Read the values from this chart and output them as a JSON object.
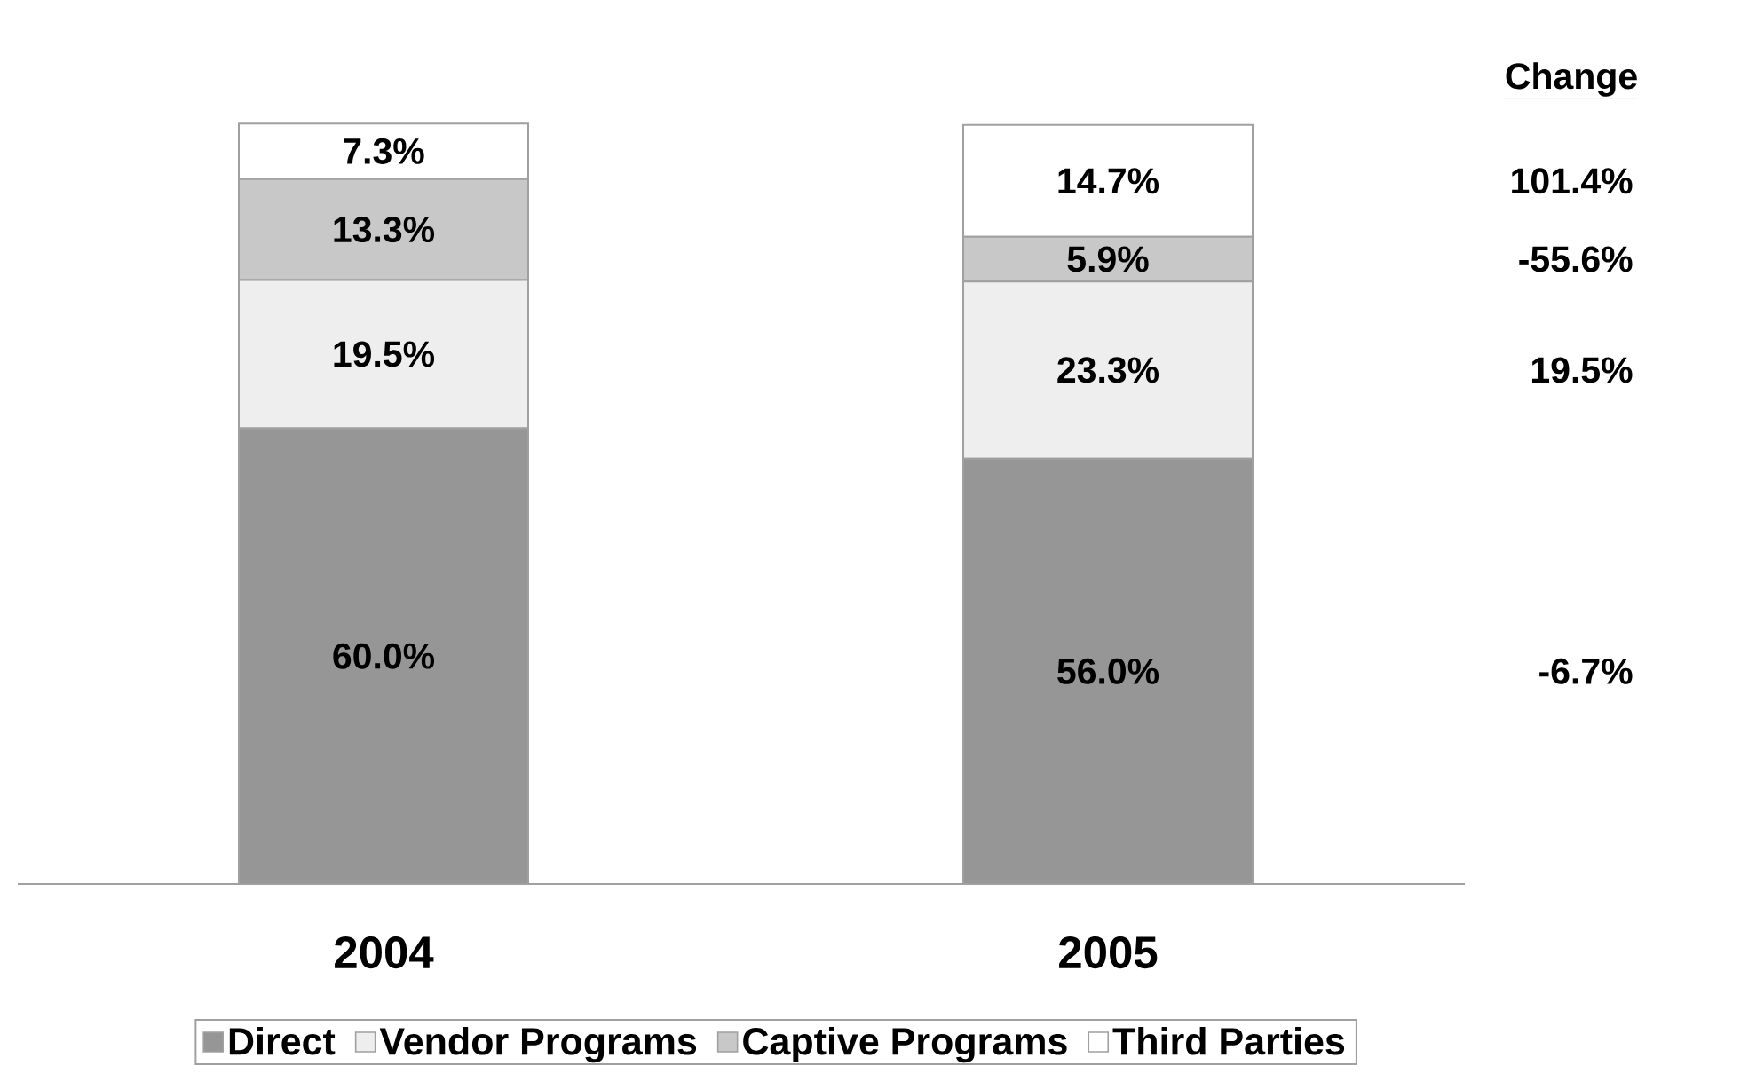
{
  "chart_data": {
    "type": "bar",
    "stacked": true,
    "categories": [
      "2004",
      "2005"
    ],
    "series": [
      {
        "name": "Direct",
        "color": "#969696",
        "values": [
          60.0,
          56.0
        ],
        "value_labels": [
          "60.0%",
          "56.0%"
        ]
      },
      {
        "name": "Vendor Programs",
        "color": "#eeeeee",
        "values": [
          19.5,
          23.3
        ],
        "value_labels": [
          "19.5%",
          "23.3%"
        ]
      },
      {
        "name": "Captive Programs",
        "color": "#c8c8c8",
        "values": [
          13.3,
          5.9
        ],
        "value_labels": [
          "13.3%",
          "5.9%"
        ]
      },
      {
        "name": "Third Parties",
        "color": "#ffffff",
        "values": [
          7.3,
          14.7
        ],
        "value_labels": [
          "7.3%",
          "14.7%"
        ]
      }
    ],
    "annotations": [
      "Change",
      "101.4%",
      "-55.6%",
      "19.5%",
      "-6.7%"
    ],
    "legend": "bottom",
    "tick_labels": "x"
  }
}
